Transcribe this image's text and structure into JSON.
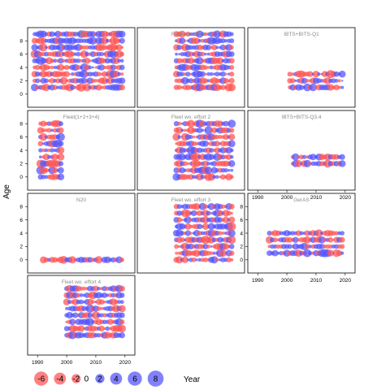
{
  "chart_data": {
    "type": "scatter",
    "subtype": "bubble-residual-grid",
    "xlabel": "Year",
    "ylabel": "Age",
    "xlim": [
      1988,
      2022
    ],
    "ylim": [
      -1,
      9
    ],
    "x_ticks": [
      1990,
      2000,
      2010,
      2020
    ],
    "y_ticks": [
      0,
      2,
      4,
      6,
      8
    ],
    "colors": {
      "positive": "#ff5050",
      "negative": "#5050ff",
      "panel_title": "#8a8a8a"
    },
    "panels": [
      {
        "title": "HERAS",
        "years": [
          1989,
          2019
        ],
        "ages": [
          1,
          9
        ],
        "x_tick_labels": false,
        "y_tick_labels": true
      },
      {
        "title": "Fleet wo. effort 1",
        "years": [
          2000,
          2019
        ],
        "ages": [
          1,
          9
        ],
        "x_tick_labels": false,
        "y_tick_labels": false
      },
      {
        "title": "IBTS+BITS-Q1",
        "years": [
          2001,
          2019
        ],
        "ages": [
          1,
          3
        ],
        "x_tick_labels": false,
        "y_tick_labels": false
      },
      {
        "title": "Fleet(1+2+3+4)",
        "years": [
          1991,
          1998
        ],
        "ages": [
          0,
          8
        ],
        "x_tick_labels": false,
        "y_tick_labels": true
      },
      {
        "title": "Fleet wo. effort 2",
        "years": [
          2000,
          2019
        ],
        "ages": [
          0,
          8
        ],
        "x_tick_labels": false,
        "y_tick_labels": false
      },
      {
        "title": "IBTS+BITS-Q3.4",
        "years": [
          2002,
          2019
        ],
        "ages": [
          2,
          3
        ],
        "x_tick_labels": true,
        "y_tick_labels": false
      },
      {
        "title": "N20",
        "years": [
          1992,
          2019
        ],
        "ages": [
          0,
          0
        ],
        "x_tick_labels": false,
        "y_tick_labels": true
      },
      {
        "title": "Fleet wo. effort 3",
        "years": [
          2000,
          2019
        ],
        "ages": [
          0,
          8
        ],
        "x_tick_labels": false,
        "y_tick_labels": false
      },
      {
        "title": "GerAS",
        "years": [
          1994,
          2019
        ],
        "ages": [
          1,
          4
        ],
        "x_tick_labels": true,
        "y_tick_labels": true
      },
      {
        "title": "Fleet wo. effort 4",
        "years": [
          2000,
          2019
        ],
        "ages": [
          1,
          8
        ],
        "x_tick_labels": true,
        "y_tick_labels": false
      }
    ],
    "legend": {
      "position": "bottom",
      "items": [
        {
          "value": -6,
          "label": "-6"
        },
        {
          "value": -4,
          "label": "-4"
        },
        {
          "value": -2,
          "label": "-2"
        },
        {
          "value": 0,
          "label": "0"
        },
        {
          "value": 2,
          "label": "2"
        },
        {
          "value": 4,
          "label": "4"
        },
        {
          "value": 6,
          "label": "6"
        },
        {
          "value": 8,
          "label": "8"
        }
      ]
    }
  }
}
